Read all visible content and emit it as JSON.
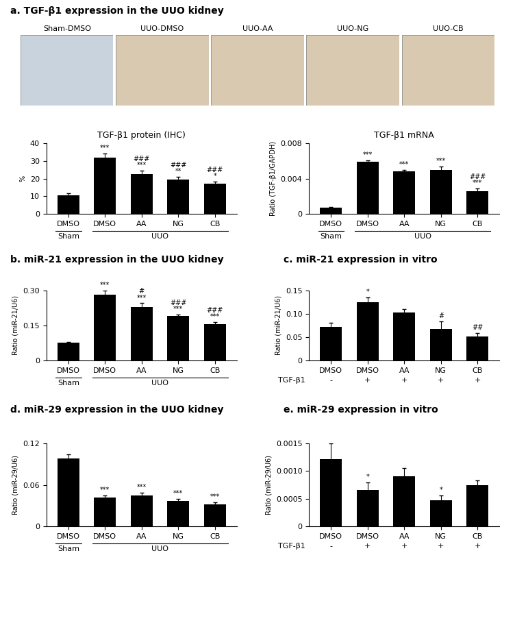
{
  "panel_titles": [
    "a. TGF-β1 expression in the UUO kidney",
    "b. miR-21 expression in the UUO kidney",
    "c. miR-21 expression in vitro",
    "d. miR-29 expression in the UUO kidney",
    "e. miR-29 expression in vitro"
  ],
  "micrograph_labels": [
    "Sham-DMSO",
    "UUO-DMSO",
    "UUO-AA",
    "UUO-NG",
    "UUO-CB"
  ],
  "chart_data": [
    {
      "type": "bar",
      "title": "TGF-β1 protein (IHC)",
      "y_label": "%",
      "color": "#000000",
      "categories": [
        "DMSO",
        "DMSO",
        "AA",
        "NG",
        "CB"
      ],
      "group_labels": [
        "Sham",
        "UUO",
        "UUO",
        "UUO",
        "UUO"
      ],
      "values": [
        10.5,
        32,
        22.5,
        19.5,
        17
      ],
      "errors": [
        1,
        2.5,
        2,
        1.5,
        1.3
      ],
      "significance": [
        null,
        "***",
        "###\n***",
        "###\n**",
        "###\n*"
      ],
      "ylim": [
        0,
        40
      ],
      "yticks": [
        0,
        10,
        20,
        30,
        40
      ]
    },
    {
      "type": "bar",
      "title": "TGF-β1 mRNA",
      "y_label": "Ratio (TGF-β1/GAPDH)",
      "color": "#000000",
      "categories": [
        "DMSO",
        "DMSO",
        "AA",
        "NG",
        "CB"
      ],
      "group_labels": [
        "Sham",
        "UUO",
        "UUO",
        "UUO",
        "UUO"
      ],
      "values": [
        0.0007,
        0.0059,
        0.0048,
        0.005,
        0.0026
      ],
      "errors": [
        0.0001,
        0.0002,
        0.0002,
        0.0004,
        0.0003
      ],
      "significance": [
        null,
        "***",
        "***",
        "***",
        "###\n***"
      ],
      "ylim": [
        0,
        0.008
      ],
      "yticks": [
        0,
        {
          "value": 0.004,
          "label": "0.004"
        },
        {
          "value": 0.008,
          "label": "0.008"
        }
      ]
    },
    {
      "type": "bar",
      "y_label": "Ratio (miR-21/U6)",
      "color": "#000000",
      "categories": [
        "DMSO",
        "DMSO",
        "AA",
        "NG",
        "CB"
      ],
      "group_labels": [
        "Sham",
        "UUO",
        "UUO",
        "UUO",
        "UUO"
      ],
      "values": [
        0.075,
        0.28,
        0.23,
        0.19,
        0.155
      ],
      "errors": [
        0.005,
        0.02,
        0.015,
        0.007,
        0.01
      ],
      "significance": [
        null,
        "***",
        "#\n***",
        "###\n***",
        "###\n***"
      ],
      "ylim": [
        0,
        0.3
      ],
      "yticks": [
        0,
        0.15,
        {
          "value": 0.3,
          "label": "0.30"
        }
      ]
    },
    {
      "type": "bar",
      "y_label": "Ratio (miR-21/U6)",
      "color": "#000000",
      "categories": [
        "DMSO",
        "DMSO",
        "AA",
        "NG",
        "CB"
      ],
      "treatment_label": "TGF-β1",
      "treatment": [
        "-",
        "+",
        "+",
        "+",
        "+"
      ],
      "values": [
        0.072,
        0.125,
        0.102,
        0.068,
        0.052
      ],
      "errors": [
        0.008,
        0.01,
        0.008,
        0.016,
        0.007
      ],
      "significance": [
        null,
        "*",
        null,
        "#",
        "##"
      ],
      "ylim": [
        0,
        0.15
      ],
      "yticks": [
        0,
        0.05,
        {
          "value": 0.1,
          "label": "0.10"
        },
        0.15
      ]
    },
    {
      "type": "bar",
      "y_label": "Ratio (miR-29/U6)",
      "color": "#000000",
      "categories": [
        "DMSO",
        "DMSO",
        "AA",
        "NG",
        "CB"
      ],
      "group_labels": [
        "Sham",
        "UUO",
        "UUO",
        "UUO",
        "UUO"
      ],
      "values": [
        0.098,
        0.042,
        0.045,
        0.037,
        0.032
      ],
      "errors": [
        0.006,
        0.003,
        0.004,
        0.003,
        0.003
      ],
      "significance": [
        null,
        "***",
        "***",
        "***",
        "***"
      ],
      "ylim": [
        0,
        0.12
      ],
      "yticks": [
        0,
        0.06,
        0.12
      ]
    },
    {
      "type": "bar",
      "y_label": "Ratio (miR-29/U6)",
      "color": "#000000",
      "categories": [
        "DMSO",
        "DMSO",
        "AA",
        "NG",
        "CB"
      ],
      "treatment_label": "TGF-β1",
      "treatment": [
        "-",
        "+",
        "+",
        "+",
        "+"
      ],
      "values": [
        0.00122,
        0.00066,
        0.0009,
        0.00047,
        0.00075
      ],
      "errors": [
        0.00028,
        0.00014,
        0.00016,
        9e-05,
        8e-05
      ],
      "significance": [
        null,
        "*",
        null,
        "*",
        null
      ],
      "ylim": [
        0,
        0.0015
      ],
      "yticks": [
        0,
        0.0005,
        {
          "value": 0.001,
          "label": "0.0010"
        },
        0.0015
      ]
    }
  ]
}
